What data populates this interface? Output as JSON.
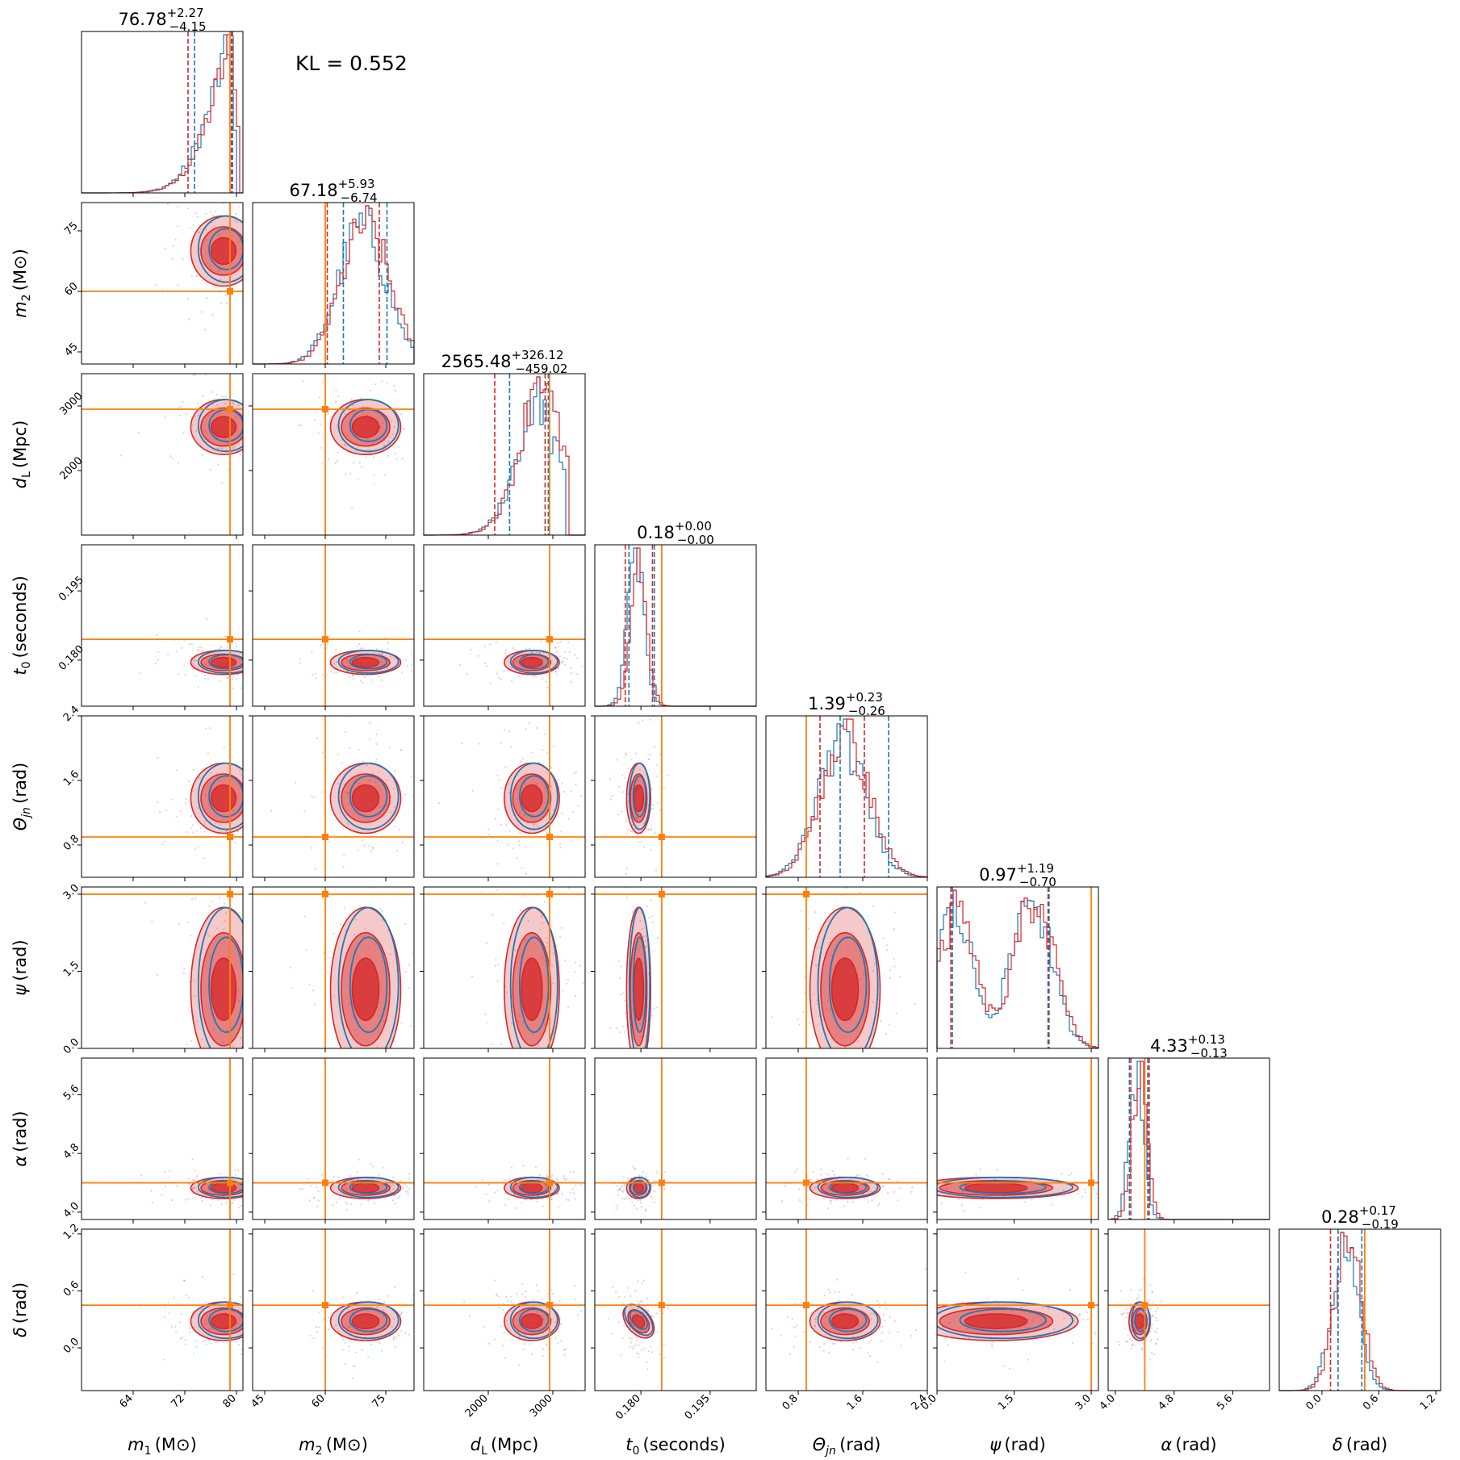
{
  "kl_text": "KL = 0.552",
  "colors": {
    "red": "#d62728",
    "red_fill": "#d62728",
    "blue": "#1f77b4",
    "truth": "#ff7f0e",
    "axis": "#000000"
  },
  "chart_data": {
    "type": "corner",
    "params": [
      {
        "key": "m1",
        "label": "m",
        "sub": "1",
        "unit": "(M⊙)",
        "range": [
          56,
          81
        ],
        "ticks": [
          64,
          72,
          80
        ],
        "truth": 79,
        "title": {
          "value": "76.78",
          "plus": "+2.27",
          "minus": "−4.15"
        },
        "red_q": [
          72.5,
          79.2
        ],
        "blue_q": [
          73.5,
          79.4
        ],
        "dist": {
          "type": "skewleft",
          "mode": 79.5,
          "width": 5,
          "edge": 80.3
        }
      },
      {
        "key": "m2",
        "label": "m",
        "sub": "2",
        "unit": "(M⊙)",
        "range": [
          42,
          82
        ],
        "ticks": [
          45,
          60,
          75
        ],
        "truth": 60,
        "title": {
          "value": "67.18",
          "plus": "+5.93",
          "minus": "−6.74"
        },
        "red_q": [
          60.5,
          73.4
        ],
        "blue_q": [
          64.5,
          75.3
        ],
        "dist": {
          "type": "gauss",
          "mean": 70,
          "sd": 6
        }
      },
      {
        "key": "dL",
        "label": "d",
        "sub": "L",
        "unit": "(Mpc)",
        "range": [
          1000,
          3500
        ],
        "ticks": [
          2000,
          3000
        ],
        "truth": 2950,
        "title": {
          "value": "2565.48",
          "plus": "+326.12",
          "minus": "−459.02"
        },
        "red_q": [
          2100,
          2880
        ],
        "blue_q": [
          2330,
          2930
        ],
        "dist": {
          "type": "skewleft",
          "mode": 2800,
          "width": 420,
          "edge": 3250
        }
      },
      {
        "key": "t0",
        "label": "t",
        "sub": "0",
        "unit": "(seconds)",
        "range": [
          0.17,
          0.205
        ],
        "ticks": [
          0.18,
          0.195
        ],
        "truth": 0.1845,
        "title": {
          "value": "0.18",
          "plus": "+0.00",
          "minus": "−0.00"
        },
        "red_q": [
          0.1766,
          0.1825
        ],
        "blue_q": [
          0.1774,
          0.1829
        ],
        "dist": {
          "type": "gauss",
          "mean": 0.1795,
          "sd": 0.0018
        }
      },
      {
        "key": "thetajn",
        "label": "Θ",
        "sub": "jn",
        "unit": "(rad)",
        "range": [
          0.4,
          2.4
        ],
        "ticks": [
          0.8,
          1.6,
          2.4
        ],
        "truth": 0.9,
        "title": {
          "value": "1.39",
          "plus": "+0.23",
          "minus": "−0.26"
        },
        "red_q": [
          1.07,
          1.62
        ],
        "blue_q": [
          1.32,
          1.92
        ],
        "dist": {
          "type": "gauss",
          "mean": 1.38,
          "sd": 0.3
        }
      },
      {
        "key": "psi",
        "label": "ψ",
        "sub": "",
        "unit": "(rad)",
        "range": [
          0.0,
          3.14
        ],
        "ticks": [
          0.0,
          1.5,
          3.0
        ],
        "truth": 3.0,
        "title": {
          "value": "0.97",
          "plus": "+1.19",
          "minus": "−0.70"
        },
        "red_q": [
          0.27,
          2.16
        ],
        "blue_q": [
          0.3,
          2.18
        ],
        "dist": {
          "type": "bimodal",
          "m1": 0.4,
          "m2": 1.9,
          "sd": 0.35
        }
      },
      {
        "key": "alpha",
        "label": "α",
        "sub": "",
        "unit": "(rad)",
        "range": [
          3.9,
          6.1
        ],
        "ticks": [
          4.0,
          4.8,
          5.6
        ],
        "truth": 4.4,
        "title": {
          "value": "4.33",
          "plus": "+0.13",
          "minus": "−0.13"
        },
        "red_q": [
          4.21,
          4.46
        ],
        "blue_q": [
          4.19,
          4.44
        ],
        "dist": {
          "type": "gauss",
          "mean": 4.33,
          "sd": 0.1
        }
      },
      {
        "key": "delta",
        "label": "δ",
        "sub": "",
        "unit": "(rad)",
        "range": [
          -0.45,
          1.25
        ],
        "ticks": [
          0.0,
          0.6,
          1.2
        ],
        "truth": 0.45,
        "title": {
          "value": "0.28",
          "plus": "+0.17",
          "minus": "−0.19"
        },
        "red_q": [
          0.09,
          0.45
        ],
        "blue_q": [
          0.17,
          0.42
        ],
        "dist": {
          "type": "gauss",
          "mean": 0.28,
          "sd": 0.14
        }
      }
    ]
  }
}
